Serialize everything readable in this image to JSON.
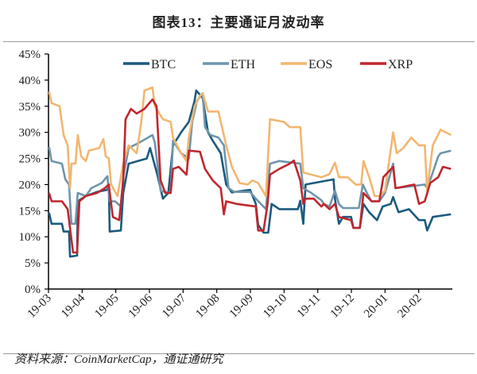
{
  "title": "图表13：主要通证月波动率",
  "source": "资料来源：CoinMarketCap，通证通研究",
  "chart_data": {
    "type": "line",
    "title": "图表13：主要通证月波动率",
    "xlabel": "",
    "ylabel": "",
    "x_unit": "months since 19-03",
    "xlim": [
      0,
      12
    ],
    "ylim": [
      0,
      45
    ],
    "grid": false,
    "legend_position": "top",
    "x_tick_labels": [
      "19-03",
      "19-04",
      "19-05",
      "19-06",
      "19-07",
      "19-08",
      "19-09",
      "19-10",
      "19-11",
      "19-12",
      "20-01",
      "20-02"
    ],
    "y_ticks": [
      0,
      5,
      10,
      15,
      20,
      25,
      30,
      35,
      40,
      45
    ],
    "y_tick_labels": [
      "0%",
      "5%",
      "10%",
      "15%",
      "20%",
      "25%",
      "30%",
      "35%",
      "40%",
      "45%"
    ],
    "series": [
      {
        "name": "BTC",
        "color": "#1b5a7e",
        "points": [
          [
            0.02,
            14.6
          ],
          [
            0.09,
            12.5
          ],
          [
            0.4,
            12.5
          ],
          [
            0.45,
            11
          ],
          [
            0.61,
            11
          ],
          [
            0.64,
            6.2
          ],
          [
            0.85,
            6.4
          ],
          [
            0.87,
            16.8
          ],
          [
            1.11,
            17.8
          ],
          [
            1.44,
            18.6
          ],
          [
            1.75,
            19
          ],
          [
            1.79,
            20
          ],
          [
            1.82,
            11
          ],
          [
            2.15,
            11.2
          ],
          [
            2.22,
            18.4
          ],
          [
            2.38,
            24
          ],
          [
            2.92,
            25
          ],
          [
            3.02,
            27
          ],
          [
            3.23,
            22
          ],
          [
            3.4,
            17.3
          ],
          [
            3.56,
            18.4
          ],
          [
            3.7,
            27.5
          ],
          [
            3.94,
            30
          ],
          [
            4.17,
            32
          ],
          [
            4.34,
            36
          ],
          [
            4.39,
            38
          ],
          [
            4.58,
            36.6
          ],
          [
            4.74,
            30
          ],
          [
            4.88,
            28.4
          ],
          [
            5.12,
            26
          ],
          [
            5.28,
            20
          ],
          [
            5.45,
            18.5
          ],
          [
            5.99,
            19
          ],
          [
            6.16,
            16.3
          ],
          [
            6.23,
            12.3
          ],
          [
            6.39,
            10.8
          ],
          [
            6.53,
            10.8
          ],
          [
            6.63,
            16.3
          ],
          [
            6.86,
            15.3
          ],
          [
            7.41,
            15.3
          ],
          [
            7.48,
            16.9
          ],
          [
            7.57,
            12.5
          ],
          [
            7.64,
            20
          ],
          [
            8.47,
            21
          ],
          [
            8.51,
            17.3
          ],
          [
            8.63,
            12.5
          ],
          [
            8.75,
            13.8
          ],
          [
            8.99,
            13.8
          ],
          [
            9.06,
            11.7
          ],
          [
            9.25,
            11.7
          ],
          [
            9.36,
            16.3
          ],
          [
            9.53,
            14.7
          ],
          [
            9.76,
            13.2
          ],
          [
            9.93,
            15.8
          ],
          [
            10.17,
            16.3
          ],
          [
            10.24,
            17.6
          ],
          [
            10.4,
            14.7
          ],
          [
            10.71,
            15.3
          ],
          [
            11.01,
            13.2
          ],
          [
            11.18,
            13.2
          ],
          [
            11.25,
            11.2
          ],
          [
            11.42,
            13.8
          ],
          [
            11.96,
            14.3
          ]
        ]
      },
      {
        "name": "ETH",
        "color": "#6f95ab",
        "points": [
          [
            0.02,
            27.2
          ],
          [
            0.09,
            24.5
          ],
          [
            0.4,
            24
          ],
          [
            0.5,
            21
          ],
          [
            0.61,
            20
          ],
          [
            0.68,
            12.5
          ],
          [
            0.8,
            12.5
          ],
          [
            0.87,
            18.4
          ],
          [
            1.11,
            17.8
          ],
          [
            1.27,
            19.3
          ],
          [
            1.58,
            20.3
          ],
          [
            1.75,
            21.6
          ],
          [
            1.82,
            16.8
          ],
          [
            1.98,
            16.8
          ],
          [
            2.15,
            15.8
          ],
          [
            2.22,
            21.4
          ],
          [
            2.38,
            27
          ],
          [
            2.69,
            28
          ],
          [
            3.09,
            29.5
          ],
          [
            3.16,
            28
          ],
          [
            3.33,
            18.8
          ],
          [
            3.63,
            18.4
          ],
          [
            3.7,
            28.4
          ],
          [
            3.94,
            26
          ],
          [
            4.17,
            25
          ],
          [
            4.27,
            32
          ],
          [
            4.41,
            36
          ],
          [
            4.58,
            37.5
          ],
          [
            4.65,
            31
          ],
          [
            4.81,
            29.5
          ],
          [
            5.05,
            29
          ],
          [
            5.21,
            27.5
          ],
          [
            5.35,
            19.3
          ],
          [
            5.52,
            18.6
          ],
          [
            5.99,
            18.6
          ],
          [
            6.16,
            17.3
          ],
          [
            6.46,
            15.3
          ],
          [
            6.58,
            24
          ],
          [
            6.86,
            24.5
          ],
          [
            7.48,
            24
          ],
          [
            7.57,
            19.3
          ],
          [
            7.81,
            18.4
          ],
          [
            8.11,
            17
          ],
          [
            8.18,
            16.3
          ],
          [
            8.35,
            15.8
          ],
          [
            8.51,
            18.8
          ],
          [
            8.63,
            16.3
          ],
          [
            8.75,
            15.5
          ],
          [
            9.22,
            15.5
          ],
          [
            9.34,
            20
          ],
          [
            9.46,
            18.4
          ],
          [
            9.6,
            16.8
          ],
          [
            9.83,
            16.8
          ],
          [
            10.0,
            18.4
          ],
          [
            10.24,
            24
          ],
          [
            10.31,
            19.3
          ],
          [
            11.18,
            20
          ],
          [
            11.25,
            19.3
          ],
          [
            11.42,
            22.3
          ],
          [
            11.58,
            25.4
          ],
          [
            11.65,
            26
          ],
          [
            11.96,
            26.5
          ]
        ]
      },
      {
        "name": "EOS",
        "color": "#f2b670",
        "points": [
          [
            0.02,
            37.8
          ],
          [
            0.09,
            35.6
          ],
          [
            0.33,
            35
          ],
          [
            0.45,
            29.5
          ],
          [
            0.57,
            27.5
          ],
          [
            0.64,
            19.3
          ],
          [
            0.68,
            24
          ],
          [
            0.8,
            24
          ],
          [
            0.87,
            29.5
          ],
          [
            0.97,
            25.4
          ],
          [
            1.11,
            24.5
          ],
          [
            1.2,
            26.5
          ],
          [
            1.51,
            27
          ],
          [
            1.63,
            28.7
          ],
          [
            1.7,
            25.4
          ],
          [
            1.79,
            25
          ],
          [
            1.86,
            20
          ],
          [
            2.05,
            17.8
          ],
          [
            2.22,
            24
          ],
          [
            2.38,
            27.5
          ],
          [
            2.62,
            26
          ],
          [
            2.76,
            32
          ],
          [
            2.85,
            38
          ],
          [
            3.09,
            38.6
          ],
          [
            3.16,
            35
          ],
          [
            3.4,
            32.5
          ],
          [
            3.63,
            32
          ],
          [
            3.7,
            29
          ],
          [
            3.94,
            26
          ],
          [
            4.1,
            24.5
          ],
          [
            4.17,
            29
          ],
          [
            4.34,
            35
          ],
          [
            4.5,
            37
          ],
          [
            4.58,
            37.5
          ],
          [
            4.74,
            34
          ],
          [
            5.05,
            34
          ],
          [
            5.12,
            32
          ],
          [
            5.28,
            27.5
          ],
          [
            5.45,
            23.4
          ],
          [
            5.68,
            20.3
          ],
          [
            5.92,
            20
          ],
          [
            6.06,
            20.8
          ],
          [
            6.23,
            20.3
          ],
          [
            6.46,
            17.8
          ],
          [
            6.58,
            32.5
          ],
          [
            7.0,
            32
          ],
          [
            7.17,
            31
          ],
          [
            7.48,
            31
          ],
          [
            7.57,
            22.3
          ],
          [
            8.11,
            21.4
          ],
          [
            8.35,
            22
          ],
          [
            8.51,
            24.2
          ],
          [
            8.63,
            21.4
          ],
          [
            8.89,
            21.4
          ],
          [
            9.13,
            20
          ],
          [
            9.29,
            20
          ],
          [
            9.36,
            24.5
          ],
          [
            9.53,
            21.4
          ],
          [
            9.69,
            17.8
          ],
          [
            9.83,
            17.8
          ],
          [
            10.0,
            18.8
          ],
          [
            10.24,
            30
          ],
          [
            10.35,
            26
          ],
          [
            10.54,
            27
          ],
          [
            10.78,
            29
          ],
          [
            11.01,
            27.5
          ],
          [
            11.18,
            27.5
          ],
          [
            11.25,
            18.8
          ],
          [
            11.42,
            27.5
          ],
          [
            11.65,
            30.5
          ],
          [
            11.96,
            29.5
          ]
        ]
      },
      {
        "name": "XRP",
        "color": "#c0262d",
        "points": [
          [
            0.02,
            18.4
          ],
          [
            0.09,
            16.8
          ],
          [
            0.4,
            16.8
          ],
          [
            0.57,
            15.3
          ],
          [
            0.73,
            7
          ],
          [
            0.85,
            7
          ],
          [
            0.92,
            16.8
          ],
          [
            1.11,
            17.8
          ],
          [
            1.44,
            18.4
          ],
          [
            1.67,
            19.3
          ],
          [
            1.79,
            20
          ],
          [
            1.91,
            13.8
          ],
          [
            2.1,
            13.2
          ],
          [
            2.22,
            20.8
          ],
          [
            2.29,
            32.5
          ],
          [
            2.45,
            34.5
          ],
          [
            2.62,
            33.6
          ],
          [
            2.85,
            34.5
          ],
          [
            3.09,
            36.3
          ],
          [
            3.21,
            35
          ],
          [
            3.33,
            20.8
          ],
          [
            3.47,
            18.4
          ],
          [
            3.63,
            18.4
          ],
          [
            3.7,
            23
          ],
          [
            3.87,
            23.4
          ],
          [
            4.1,
            21.9
          ],
          [
            4.17,
            26.5
          ],
          [
            4.5,
            26.3
          ],
          [
            4.65,
            23
          ],
          [
            4.88,
            20.8
          ],
          [
            5.12,
            19.3
          ],
          [
            5.21,
            14.3
          ],
          [
            5.28,
            16.8
          ],
          [
            5.59,
            16.3
          ],
          [
            6.16,
            15.8
          ],
          [
            6.23,
            11.2
          ],
          [
            6.39,
            11.2
          ],
          [
            6.51,
            16.3
          ],
          [
            6.58,
            21.9
          ],
          [
            6.86,
            23
          ],
          [
            7.17,
            24
          ],
          [
            7.29,
            24.6
          ],
          [
            7.48,
            20.8
          ],
          [
            7.57,
            16.3
          ],
          [
            7.64,
            17.3
          ],
          [
            7.88,
            17.3
          ],
          [
            8.11,
            15.8
          ],
          [
            8.18,
            16.3
          ],
          [
            8.35,
            15.3
          ],
          [
            8.51,
            16.3
          ],
          [
            8.63,
            13.8
          ],
          [
            8.99,
            13.2
          ],
          [
            9.06,
            11.7
          ],
          [
            9.25,
            11.7
          ],
          [
            9.36,
            18.4
          ],
          [
            9.6,
            16.8
          ],
          [
            9.83,
            16.8
          ],
          [
            9.95,
            21.4
          ],
          [
            10.24,
            23.4
          ],
          [
            10.31,
            19.3
          ],
          [
            10.87,
            20
          ],
          [
            11.01,
            16.3
          ],
          [
            11.18,
            16.8
          ],
          [
            11.34,
            20.3
          ],
          [
            11.58,
            21.4
          ],
          [
            11.72,
            23.4
          ],
          [
            11.96,
            23
          ]
        ]
      }
    ]
  }
}
